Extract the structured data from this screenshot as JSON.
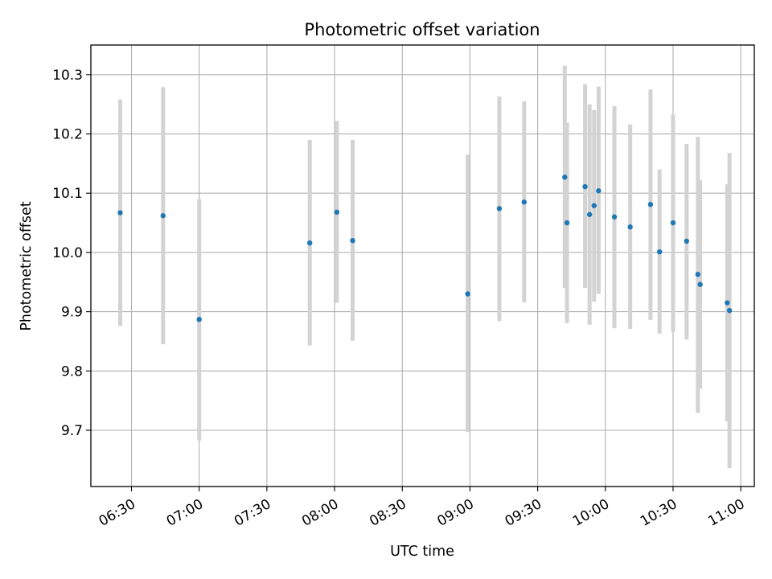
{
  "chart_data": {
    "type": "scatter",
    "title": "Photometric offset variation",
    "xlabel": "UTC time",
    "ylabel": "Photometric offset",
    "xlim": [
      "06:12",
      "11:06"
    ],
    "ylim": [
      9.605,
      10.35
    ],
    "grid": true,
    "x_ticks": [
      "06:30",
      "07:00",
      "07:30",
      "08:00",
      "08:30",
      "09:00",
      "09:30",
      "10:00",
      "10:30",
      "11:00"
    ],
    "y_ticks": [
      9.7,
      9.8,
      9.9,
      10.0,
      10.1,
      10.2,
      10.3
    ],
    "y_tick_labels": [
      "9.7",
      "9.8",
      "9.9",
      "10.0",
      "10.1",
      "10.2",
      "10.3"
    ],
    "point_color": "#1f77b4",
    "errorbar_color": "#d3d3d3",
    "points": [
      {
        "x": "06:25",
        "y": 10.067,
        "ylo": 9.876,
        "yhi": 10.258
      },
      {
        "x": "06:44",
        "y": 10.062,
        "ylo": 9.845,
        "yhi": 10.279
      },
      {
        "x": "07:00",
        "y": 9.887,
        "ylo": 9.683,
        "yhi": 10.09
      },
      {
        "x": "07:49",
        "y": 10.016,
        "ylo": 9.843,
        "yhi": 10.19
      },
      {
        "x": "08:01",
        "y": 10.068,
        "ylo": 9.915,
        "yhi": 10.222
      },
      {
        "x": "08:08",
        "y": 10.02,
        "ylo": 9.851,
        "yhi": 10.19
      },
      {
        "x": "08:59",
        "y": 9.93,
        "ylo": 9.697,
        "yhi": 10.165
      },
      {
        "x": "09:13",
        "y": 10.074,
        "ylo": 9.884,
        "yhi": 10.263
      },
      {
        "x": "09:24",
        "y": 10.085,
        "ylo": 9.916,
        "yhi": 10.255
      },
      {
        "x": "09:42",
        "y": 10.127,
        "ylo": 9.94,
        "yhi": 10.315
      },
      {
        "x": "09:43",
        "y": 10.05,
        "ylo": 9.881,
        "yhi": 10.219
      },
      {
        "x": "09:51",
        "y": 10.111,
        "ylo": 9.94,
        "yhi": 10.284
      },
      {
        "x": "09:53",
        "y": 10.064,
        "ylo": 9.878,
        "yhi": 10.25
      },
      {
        "x": "09:55",
        "y": 10.079,
        "ylo": 9.917,
        "yhi": 10.24
      },
      {
        "x": "09:57",
        "y": 10.104,
        "ylo": 9.93,
        "yhi": 10.28
      },
      {
        "x": "10:04",
        "y": 10.06,
        "ylo": 9.872,
        "yhi": 10.247
      },
      {
        "x": "10:11",
        "y": 10.043,
        "ylo": 9.871,
        "yhi": 10.216
      },
      {
        "x": "10:20",
        "y": 10.081,
        "ylo": 9.886,
        "yhi": 10.275
      },
      {
        "x": "10:24",
        "y": 10.001,
        "ylo": 9.863,
        "yhi": 10.14
      },
      {
        "x": "10:30",
        "y": 10.05,
        "ylo": 9.866,
        "yhi": 10.233
      },
      {
        "x": "10:36",
        "y": 10.019,
        "ylo": 9.853,
        "yhi": 10.183
      },
      {
        "x": "10:41",
        "y": 9.963,
        "ylo": 9.729,
        "yhi": 10.195
      },
      {
        "x": "10:42",
        "y": 9.946,
        "ylo": 9.77,
        "yhi": 10.122
      },
      {
        "x": "10:54",
        "y": 9.915,
        "ylo": 9.715,
        "yhi": 10.115
      },
      {
        "x": "10:55",
        "y": 9.902,
        "ylo": 9.636,
        "yhi": 10.168
      }
    ]
  }
}
